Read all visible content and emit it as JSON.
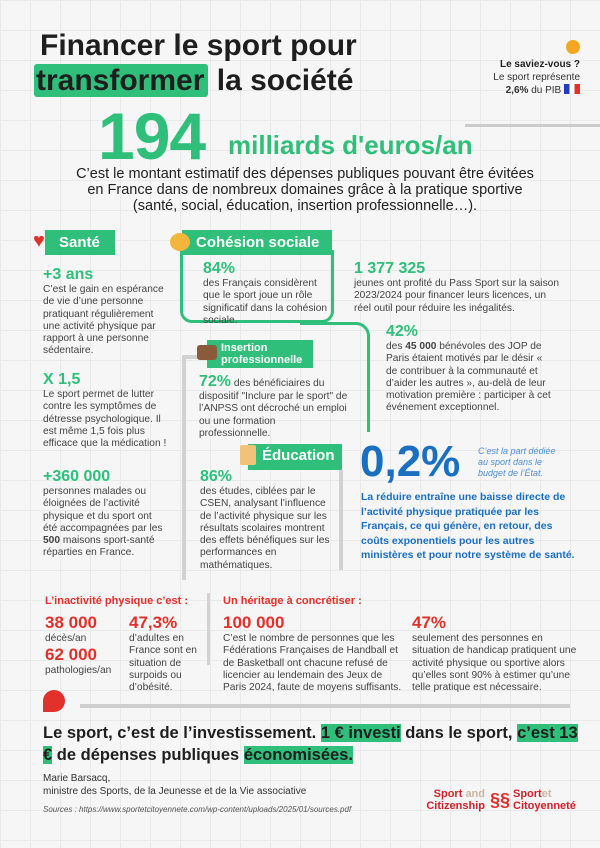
{
  "title": {
    "line1": "Financer le sport pour",
    "highlight": "transformer",
    "rest": "la société"
  },
  "didyouknow": {
    "heading": "Le saviez-vous ?",
    "line1": "Le sport représente",
    "value": "2,6%",
    "suffix": "du PIB"
  },
  "hero": {
    "number": "194",
    "unit": "milliards d'euros/an",
    "description": "C’est le montant estimatif des dépenses publiques pouvant être évitées en France dans de nombreux domaines grâce à la pratique sportive (santé, social, éducation, insertion professionnelle…)."
  },
  "sante": {
    "label": "Santé",
    "items": [
      {
        "value": "+3 ans",
        "text": "C’est le gain en espérance de vie d’une personne pratiquant régulièrement une activité physique par rapport à une personne sédentaire."
      },
      {
        "value": "X 1,5",
        "text": "Le sport permet de lutter contre les symptômes de détresse psychologique. Il est même 1,5 fois plus efficace que la médication !"
      },
      {
        "value": "+360 000",
        "text_a": "personnes malades ou éloignées de l’activité physique et du sport ont été accompagnées par les ",
        "bold": "500",
        "text_b": " maisons sport-santé réparties en France."
      }
    ]
  },
  "cohesion": {
    "label": "Cohésion sociale",
    "items": [
      {
        "value": "84%",
        "text": "des Français considèrent que le sport joue un rôle significatif dans la cohésion sociale."
      },
      {
        "value": "1 377 325",
        "text": "jeunes ont profité du Pass Sport sur la saison 2023/2024 pour financer leurs licences, un réel outil pour réduire les inégalités."
      },
      {
        "value": "42%",
        "text_a": "des ",
        "bold": "45 000",
        "text_b": " bénévoles des JOP de Paris  étaient motivés par le désir « de contribuer à la communauté et d’aider les autres », au-delà de leur motivation première : participer à cet événement exceptionnel."
      }
    ]
  },
  "insertion": {
    "label_1": "Insertion",
    "label_2": "professionnelle",
    "value": "72%",
    "text": " des bénéficiaires du dispositif \"Inclure par le sport\" de l’ANPSS ont décroché un emploi ou une formation professionnelle."
  },
  "education": {
    "label": "Éducation",
    "value": "86%",
    "text": "des études, ciblées par le CSEN, analysant l’influence de l’activité physique sur les résultats scolaires montrent des effets bénéfiques sur les performances en mathématiques."
  },
  "budget": {
    "value": "0,2%",
    "note": "C’est la part dédiée au sport dans le budget de l’État.",
    "text": "La réduire entraîne une baisse directe de l’activité physique pratiquée par les Français, ce qui génère, en retour, des coûts exponentiels pour les autres ministères et pour notre système de santé."
  },
  "inactivite": {
    "heading": "L’inactivité physique c’est :",
    "items": [
      {
        "value": "38 000",
        "text": "décès/an"
      },
      {
        "value": "62 000",
        "text": "pathologies/an"
      },
      {
        "value": "47,3%",
        "text": "d’adultes en France sont en situation de surpoids ou d’obésité."
      }
    ]
  },
  "heritage": {
    "heading": "Un héritage à concrétiser :",
    "items": [
      {
        "value": "100 000",
        "text": "C’est le nombre de personnes que les Fédérations Françaises de Handball et de Basketball ont chacune refusé de licencier au lendemain des Jeux de Paris 2024, faute de moyens suffisants."
      },
      {
        "value": "47%",
        "text": "seulement des personnes en situation de handicap pratiquent une activité physique ou sportive alors qu’elles sont 90% à estimer qu’une telle pratique est nécessaire."
      }
    ]
  },
  "quote": {
    "p1": "Le sport, c’est de l’investissement. ",
    "h1": "1 € investi",
    "p2": " dans le sport, ",
    "h2": "c’est 13 €",
    "p3": " de dépenses publiques ",
    "h3": "économisées.",
    "author": "Marie Barsacq,",
    "role": "ministre des Sports, de la Jeunesse et de la Vie associative"
  },
  "sources": "Sources : https://www.sportetcitoyennete.com/wp-content/uploads/2025/01/sources.pdf",
  "logos": {
    "left_1": "Sport",
    "left_2": "and",
    "left_3": "Citizenship",
    "right_1": "Sport",
    "right_2": "et",
    "right_3": "Citoyenneté"
  },
  "colors": {
    "green": "#2fbf7a",
    "blue": "#1a6fc0",
    "red": "#e2302a"
  }
}
